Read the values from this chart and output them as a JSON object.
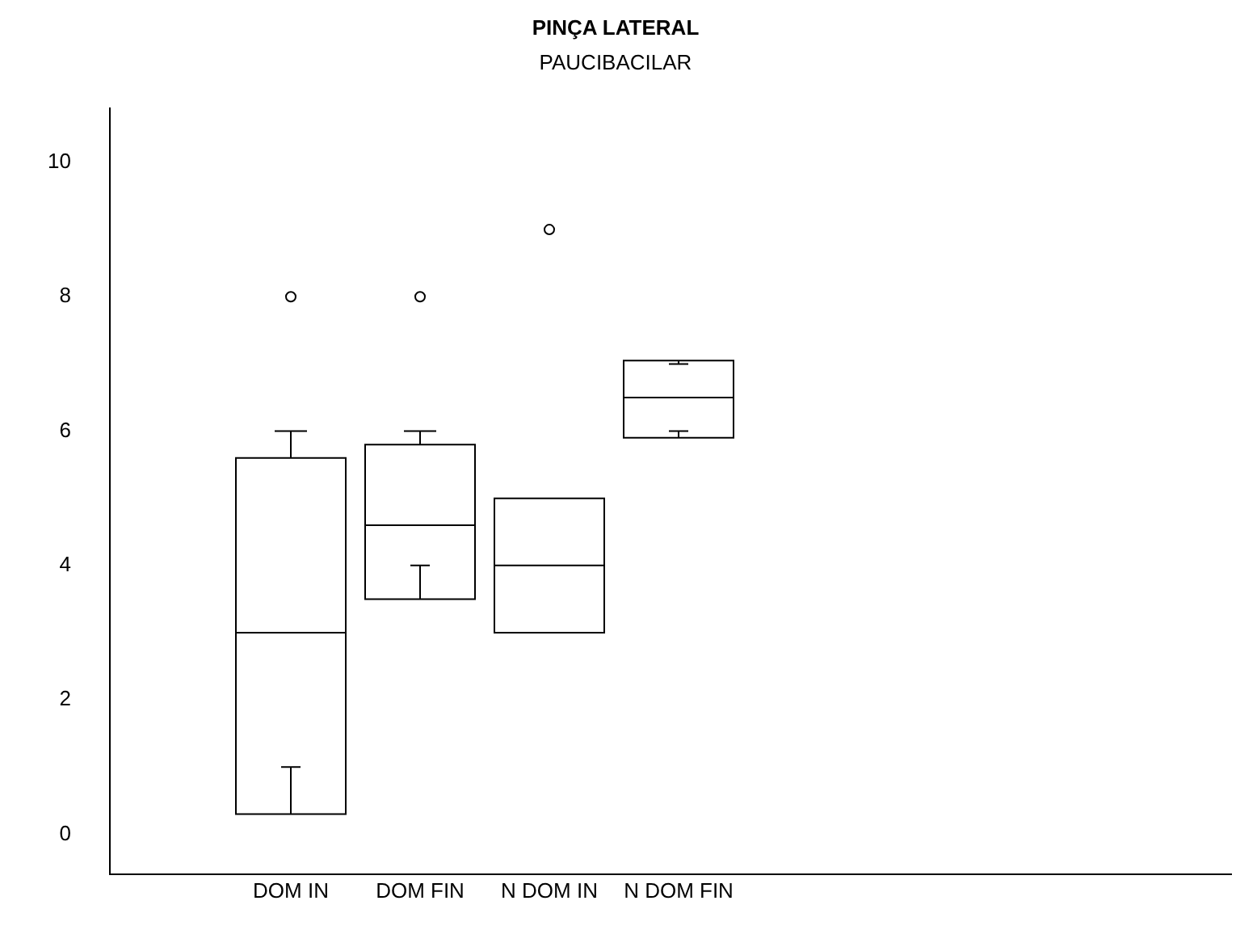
{
  "chart_data": {
    "type": "box",
    "title": "PINÇA LATERAL",
    "subtitle": "PAUCIBACILAR",
    "categories": [
      "DOM IN",
      "DOM FIN",
      "N DOM IN",
      "N DOM FIN"
    ],
    "boxes": [
      {
        "low": 1,
        "q1": 0.3,
        "median": 3,
        "q3": 5.6,
        "high": 6,
        "outliers": [
          8
        ]
      },
      {
        "low": 4,
        "q1": 3.5,
        "median": 4.6,
        "q3": 5.8,
        "high": 6,
        "outliers": [
          8
        ]
      },
      {
        "low": 3,
        "q1": 3,
        "median": 4,
        "q3": 5,
        "high": 5,
        "outliers": [
          9
        ]
      },
      {
        "low": 6,
        "q1": 5.9,
        "median": 6.5,
        "q3": 7.05,
        "high": 7
      }
    ],
    "color": "#000000",
    "ylim": [
      -0.6,
      10.8
    ],
    "yticks": [
      0,
      2,
      4,
      6,
      8,
      10
    ],
    "grid": false,
    "legend": false
  }
}
